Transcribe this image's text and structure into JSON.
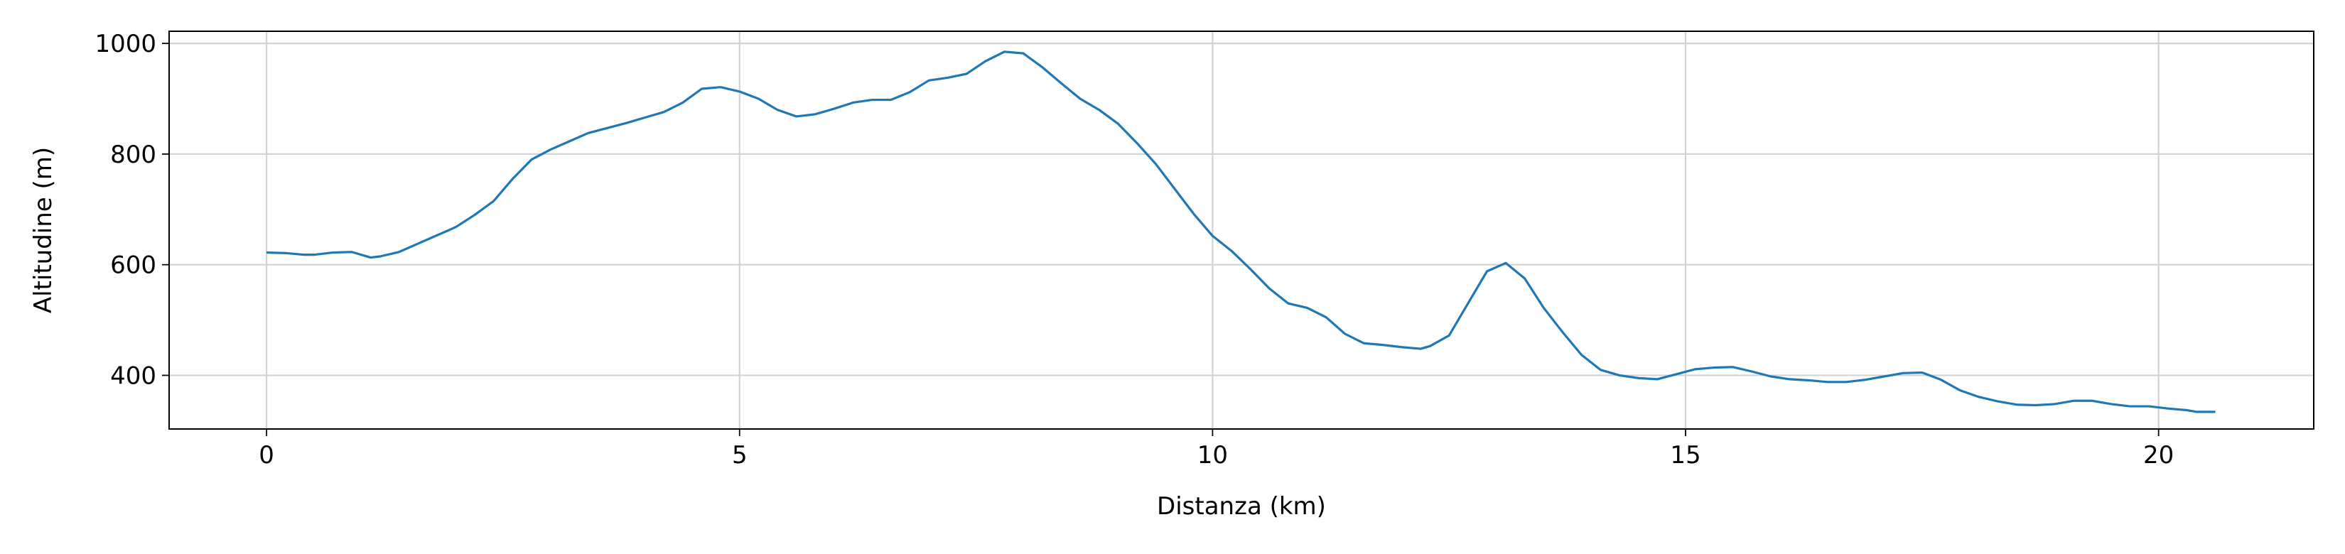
{
  "chart_data": {
    "type": "line",
    "x": [
      0,
      0.2,
      0.4,
      0.5,
      0.7,
      0.9,
      1.1,
      1.2,
      1.4,
      1.6,
      1.8,
      2.0,
      2.2,
      2.4,
      2.6,
      2.8,
      3.0,
      3.2,
      3.4,
      3.6,
      3.8,
      4.0,
      4.2,
      4.4,
      4.6,
      4.8,
      5.0,
      5.2,
      5.4,
      5.6,
      5.8,
      6.0,
      6.2,
      6.4,
      6.6,
      6.8,
      7.0,
      7.2,
      7.4,
      7.6,
      7.8,
      8.0,
      8.2,
      8.4,
      8.6,
      8.8,
      9.0,
      9.2,
      9.4,
      9.6,
      9.8,
      10.0,
      10.2,
      10.4,
      10.6,
      10.8,
      11.0,
      11.2,
      11.4,
      11.6,
      11.8,
      12.0,
      12.2,
      12.3,
      12.5,
      12.7,
      12.9,
      13.1,
      13.3,
      13.5,
      13.7,
      13.9,
      14.1,
      14.3,
      14.5,
      14.7,
      14.9,
      15.1,
      15.3,
      15.5,
      15.7,
      15.9,
      16.1,
      16.3,
      16.5,
      16.7,
      16.9,
      17.1,
      17.3,
      17.5,
      17.7,
      17.9,
      18.1,
      18.3,
      18.5,
      18.7,
      18.9,
      19.1,
      19.3,
      19.5,
      19.7,
      19.9,
      20.1,
      20.3,
      20.4,
      20.6
    ],
    "series": [
      {
        "color": "#1f77b4",
        "values": [
          622,
          621,
          618,
          618,
          622,
          623,
          613,
          615,
          623,
          638,
          653,
          668,
          690,
          715,
          755,
          790,
          808,
          823,
          838,
          847,
          856,
          866,
          876,
          893,
          918,
          921,
          913,
          900,
          880,
          868,
          872,
          882,
          893,
          898,
          898,
          912,
          933,
          938,
          945,
          968,
          985,
          982,
          957,
          928,
          900,
          880,
          855,
          820,
          782,
          737,
          692,
          652,
          625,
          592,
          557,
          530,
          522,
          505,
          475,
          458,
          455,
          451,
          448,
          453,
          472,
          530,
          588,
          603,
          575,
          522,
          478,
          437,
          410,
          400,
          395,
          393,
          402,
          411,
          414,
          415,
          407,
          398,
          393,
          391,
          388,
          388,
          392,
          398,
          404,
          405,
          392,
          373,
          361,
          353,
          347,
          346,
          348,
          354,
          354,
          348,
          344,
          344,
          340,
          337,
          334,
          334
        ]
      }
    ],
    "xlabel": "Distanza (km)",
    "ylabel": "Altitudine (m)",
    "xlim": [
      -1.03,
      21.64
    ],
    "ylim": [
      303,
      1022
    ],
    "xticks": [
      0,
      5,
      10,
      15,
      20
    ],
    "yticks": [
      400,
      600,
      800,
      1000
    ],
    "grid": true
  }
}
